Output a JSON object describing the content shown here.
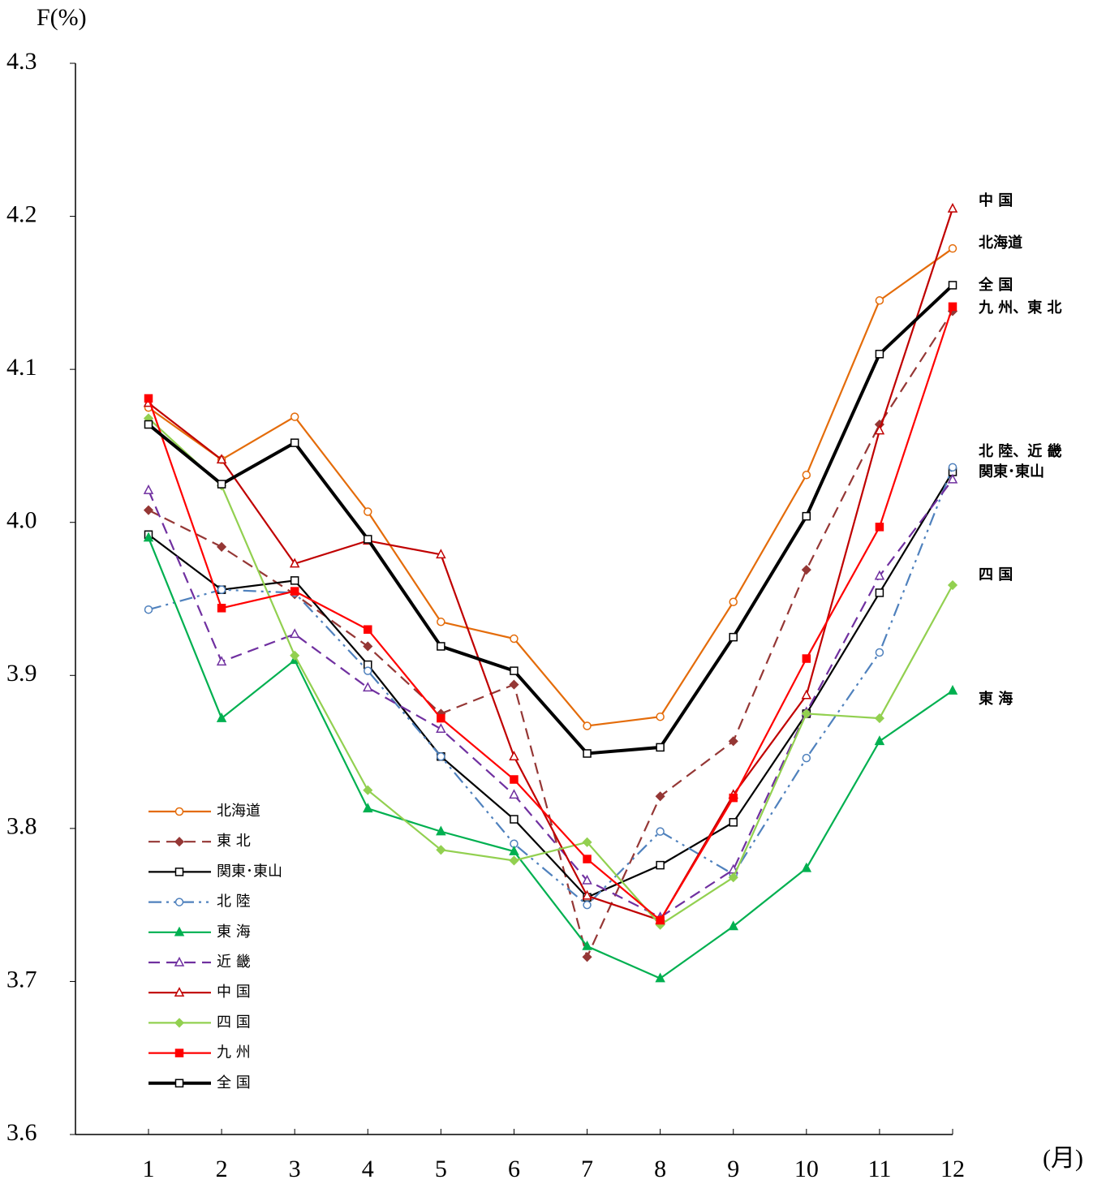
{
  "chart_data": {
    "type": "line",
    "y_label": "F(%)",
    "x_label": "(月)",
    "categories": [
      "1",
      "2",
      "3",
      "4",
      "5",
      "6",
      "7",
      "8",
      "9",
      "10",
      "11",
      "12"
    ],
    "ylim": [
      3.6,
      4.3
    ],
    "yticks": [
      3.6,
      3.7,
      3.8,
      3.9,
      {
        "value": 4,
        "label": "4.0"
      },
      4.1,
      4.2,
      4.3
    ],
    "grid": false,
    "series": [
      {
        "name": "北海道",
        "color": "#e46c0a",
        "dash": "solid",
        "marker": "circle-open",
        "values": [
          4.075,
          4.041,
          4.069,
          4.007,
          3.935,
          3.924,
          3.867,
          3.873,
          3.948,
          4.031,
          4.145,
          4.179
        ]
      },
      {
        "name": "東 北",
        "color": "#953735",
        "dash": "dash",
        "marker": "diamond",
        "values": [
          4.008,
          3.984,
          3.953,
          3.919,
          3.875,
          3.894,
          3.716,
          3.821,
          3.857,
          3.969,
          4.064,
          4.138
        ]
      },
      {
        "name": "関東･東山",
        "color": "#000000",
        "dash": "solid",
        "marker": "square-open",
        "values": [
          3.992,
          3.956,
          3.962,
          3.907,
          3.847,
          3.806,
          3.755,
          3.776,
          3.804,
          3.875,
          3.954,
          4.033
        ]
      },
      {
        "name": "北 陸",
        "color": "#4f81bd",
        "dash": "dashdot",
        "marker": "circle-open",
        "values": [
          3.943,
          3.956,
          3.954,
          3.903,
          3.847,
          3.79,
          3.75,
          3.798,
          3.77,
          3.846,
          3.915,
          4.036
        ]
      },
      {
        "name": "東 海",
        "color": "#00b050",
        "dash": "solid",
        "marker": "triangle",
        "values": [
          3.99,
          3.872,
          3.91,
          3.813,
          3.798,
          3.785,
          3.723,
          3.702,
          3.736,
          3.774,
          3.857,
          3.89
        ]
      },
      {
        "name": "近 畿",
        "color": "#7030a0",
        "dash": "dash",
        "marker": "triangle-open",
        "values": [
          4.021,
          3.909,
          3.927,
          3.892,
          3.865,
          3.822,
          3.766,
          3.742,
          3.773,
          3.876,
          3.965,
          4.028
        ]
      },
      {
        "name": "中 国",
        "color": "#c00000",
        "dash": "solid",
        "marker": "triangle-open",
        "values": [
          4.078,
          4.041,
          3.973,
          3.988,
          3.979,
          3.847,
          3.756,
          3.74,
          3.822,
          3.887,
          4.06,
          4.205
        ]
      },
      {
        "name": "四 国",
        "color": "#92d050",
        "dash": "solid",
        "marker": "diamond",
        "values": [
          4.068,
          4.024,
          3.913,
          3.825,
          3.786,
          3.779,
          3.791,
          3.737,
          3.768,
          3.875,
          3.872,
          3.959
        ]
      },
      {
        "name": "九 州",
        "color": "#ff0000",
        "dash": "solid",
        "marker": "square",
        "values": [
          4.081,
          3.944,
          3.955,
          3.93,
          3.872,
          3.832,
          3.78,
          3.74,
          3.82,
          3.911,
          3.997,
          4.141
        ]
      },
      {
        "name": "全 国",
        "color": "#000000",
        "dash": "solid",
        "marker": "square-open",
        "width": 4,
        "values": [
          4.064,
          4.025,
          4.052,
          3.989,
          3.919,
          3.903,
          3.849,
          3.853,
          3.925,
          4.004,
          4.11,
          4.155
        ]
      }
    ],
    "annotations": [
      "中 国",
      "北海道",
      "全 国",
      "九 州、東 北",
      "北 陸、近 畿",
      "関東･東山",
      "四 国",
      "東 海"
    ]
  }
}
